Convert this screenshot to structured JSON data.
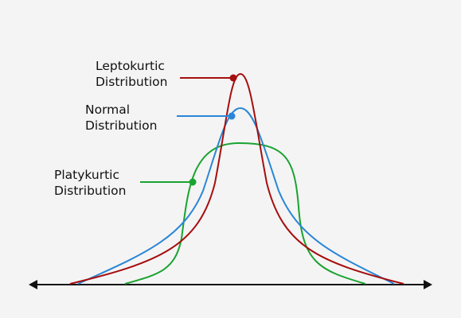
{
  "labels": [
    {
      "lines": [
        "Leptokurtic",
        "Distribution"
      ]
    },
    {
      "lines": [
        "Normal",
        "Distribution"
      ]
    },
    {
      "lines": [
        "Platykurtic",
        "Distribution"
      ]
    }
  ]
}
